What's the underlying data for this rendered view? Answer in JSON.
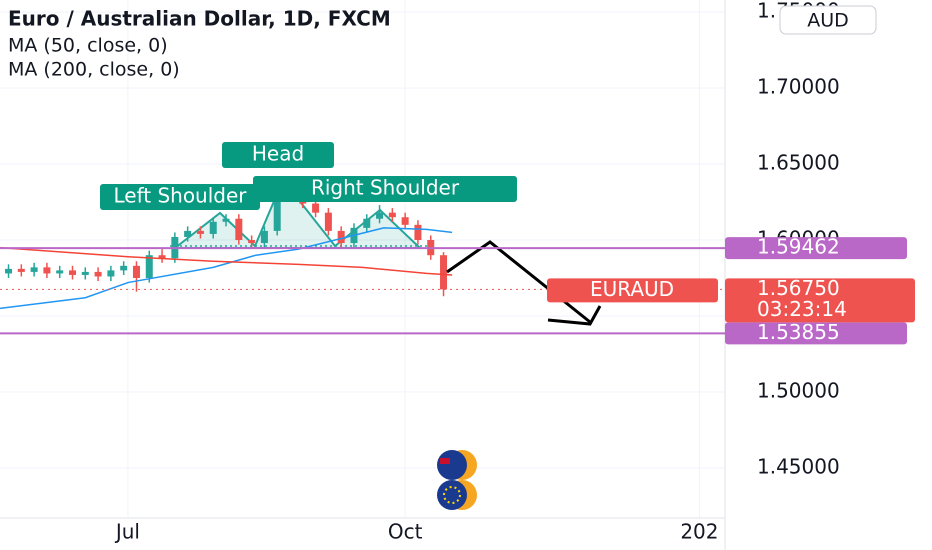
{
  "chart_data": {
    "type": "candlestick",
    "title": "Euro / Australian Dollar, 1D, FXCM",
    "indicators": [
      "MA (50, close, 0)",
      "MA (200, close, 0)"
    ],
    "currency": "AUD",
    "xlim": [
      -20,
      150
    ],
    "ylim": [
      1.417,
      1.758
    ],
    "xticks": [
      {
        "value": 10,
        "label": "Jul"
      },
      {
        "value": 75,
        "label": "Oct"
      },
      {
        "value": 144,
        "label": "202"
      }
    ],
    "yticks": [
      {
        "value": 1.75,
        "label": "1.75000"
      },
      {
        "value": 1.7,
        "label": "1.70000"
      },
      {
        "value": 1.65,
        "label": "1.65000"
      },
      {
        "value": 1.6,
        "label": "1.60000"
      },
      {
        "value": 1.55,
        "label": "1.55000"
      },
      {
        "value": 1.5,
        "label": "1.50000"
      },
      {
        "value": 1.45,
        "label": "1.45000"
      }
    ],
    "grid": true,
    "up_color": "#26a69a",
    "down_color": "#ef5350",
    "x": [
      -18,
      -15,
      -12,
      -9,
      -6,
      -3,
      0,
      3,
      6,
      9,
      12,
      15,
      18,
      21,
      24,
      27,
      30,
      33,
      36,
      39,
      42,
      45,
      48,
      51,
      54,
      57,
      60,
      63,
      66,
      69,
      72,
      75,
      78,
      81,
      84
    ],
    "open": [
      1.578,
      1.581,
      1.579,
      1.582,
      1.578,
      1.58,
      1.577,
      1.579,
      1.576,
      1.58,
      1.583,
      1.575,
      1.59,
      1.588,
      1.602,
      1.606,
      1.604,
      1.612,
      1.614,
      1.6,
      1.598,
      1.606,
      1.63,
      1.636,
      1.624,
      1.618,
      1.606,
      1.598,
      1.608,
      1.614,
      1.618,
      1.615,
      1.61,
      1.6,
      1.59
    ],
    "high": [
      1.584,
      1.584,
      1.585,
      1.585,
      1.583,
      1.583,
      1.582,
      1.582,
      1.583,
      1.586,
      1.586,
      1.593,
      1.594,
      1.605,
      1.609,
      1.609,
      1.615,
      1.617,
      1.617,
      1.603,
      1.609,
      1.633,
      1.642,
      1.639,
      1.627,
      1.621,
      1.609,
      1.611,
      1.617,
      1.623,
      1.621,
      1.618,
      1.613,
      1.603,
      1.592
    ],
    "low": [
      1.575,
      1.576,
      1.576,
      1.575,
      1.575,
      1.574,
      1.574,
      1.573,
      1.573,
      1.577,
      1.566,
      1.572,
      1.585,
      1.585,
      1.599,
      1.601,
      1.601,
      1.609,
      1.597,
      1.595,
      1.595,
      1.603,
      1.627,
      1.621,
      1.615,
      1.603,
      1.595,
      1.595,
      1.605,
      1.611,
      1.612,
      1.607,
      1.597,
      1.587,
      1.563
    ],
    "close": [
      1.581,
      1.579,
      1.582,
      1.578,
      1.58,
      1.577,
      1.579,
      1.576,
      1.58,
      1.583,
      1.575,
      1.59,
      1.588,
      1.602,
      1.606,
      1.604,
      1.612,
      1.614,
      1.6,
      1.598,
      1.606,
      1.63,
      1.636,
      1.624,
      1.618,
      1.606,
      1.598,
      1.608,
      1.614,
      1.618,
      1.615,
      1.61,
      1.6,
      1.59,
      1.5675
    ],
    "series": [
      {
        "name": "MA (50, close, 0)",
        "color": "#2196f3",
        "x": [
          -20,
          0,
          10,
          30,
          40,
          50,
          60,
          70,
          80,
          86
        ],
        "values": [
          1.555,
          1.562,
          1.572,
          1.582,
          1.59,
          1.594,
          1.601,
          1.608,
          1.607,
          1.605
        ]
      },
      {
        "name": "MA (200, close, 0)",
        "color": "#f44336",
        "x": [
          -20,
          10,
          30,
          50,
          65,
          80,
          86
        ],
        "values": [
          1.595,
          1.589,
          1.586,
          1.584,
          1.582,
          1.578,
          1.577
        ]
      }
    ],
    "levels": [
      {
        "value": 1.59462,
        "color": "#ba68c8"
      },
      {
        "value": 1.53855,
        "color": "#ba68c8"
      }
    ],
    "last_price": {
      "value": 1.5675,
      "label": "1.56750",
      "symbol": "EURAUD",
      "countdown": "03:23:14",
      "color": "#ef5350"
    },
    "annotations": [
      "Left Shoulder",
      "Head",
      "Right Shoulder"
    ]
  }
}
